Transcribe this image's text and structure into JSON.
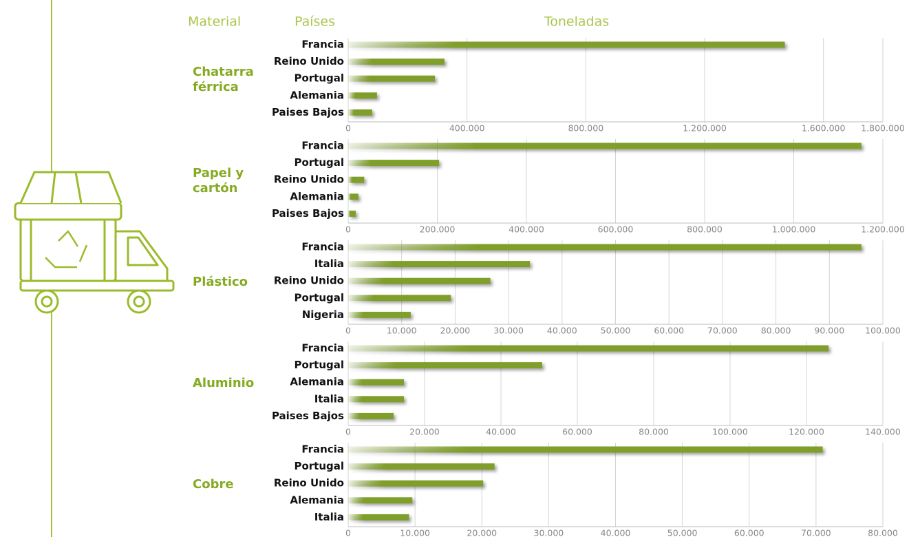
{
  "headers": {
    "material": "Material",
    "countries": "Países",
    "tonnage": "Toneladas"
  },
  "chart_data": [
    {
      "type": "bar",
      "orientation": "horizontal",
      "title": "Chatarra férrica",
      "categories": [
        "Francia",
        "Reino Unido",
        "Portugal",
        "Alemania",
        "Paises Bajos"
      ],
      "values": [
        1470000,
        324000,
        292000,
        97000,
        81000
      ],
      "color": "#7f9f2a",
      "xlim": [
        0,
        1800000
      ],
      "xticks": [
        0,
        {
          "value": 400000,
          "label": "400.000"
        },
        {
          "value": 800000,
          "label": "800.000"
        },
        {
          "value": 1200000,
          "label": "1.200.000"
        },
        {
          "value": 1600000,
          "label": "1.600.000"
        },
        {
          "value": 1800000,
          "label": "1.800.000"
        }
      ],
      "grid": true
    },
    {
      "type": "bar",
      "orientation": "horizontal",
      "title": "Papel y cartón",
      "categories": [
        "Francia",
        "Portugal",
        "Reino Unido",
        "Alemania",
        "Paises Bajos"
      ],
      "values": [
        1152000,
        204000,
        36000,
        23000,
        17000
      ],
      "color": "#7f9f2a",
      "xlim": [
        0,
        1200000
      ],
      "xticks": [
        0,
        {
          "value": 200000,
          "label": "200.000"
        },
        {
          "value": 400000,
          "label": "400.000"
        },
        {
          "value": 600000,
          "label": "600.000"
        },
        {
          "value": 800000,
          "label": "800.000"
        },
        {
          "value": 1000000,
          "label": "1.000.000"
        },
        {
          "value": 1200000,
          "label": "1.200.000"
        }
      ],
      "grid": true
    },
    {
      "type": "bar",
      "orientation": "horizontal",
      "title": "Plástico",
      "categories": [
        "Francia",
        "Italia",
        "Reino Unido",
        "Portugal",
        "Nigeria"
      ],
      "values": [
        96000,
        34000,
        26600,
        19200,
        11700
      ],
      "color": "#7f9f2a",
      "xlim": [
        0,
        100000
      ],
      "xticks": [
        0,
        {
          "value": 10000,
          "label": "10.000"
        },
        {
          "value": 20000,
          "label": "20.000"
        },
        {
          "value": 30000,
          "label": "30.000"
        },
        {
          "value": 40000,
          "label": "40.000"
        },
        {
          "value": 50000,
          "label": "50.000"
        },
        {
          "value": 60000,
          "label": "60.000"
        },
        {
          "value": 70000,
          "label": "70.000"
        },
        {
          "value": 80000,
          "label": "80.000"
        },
        {
          "value": 90000,
          "label": "90.000"
        },
        {
          "value": 100000,
          "label": "100.000"
        }
      ],
      "grid": true
    },
    {
      "type": "bar",
      "orientation": "horizontal",
      "title": "Aluminio",
      "categories": [
        "Francia",
        "Portugal",
        "Alemania",
        "Italia",
        "Paises Bajos"
      ],
      "values": [
        125800,
        50800,
        14600,
        14600,
        11900
      ],
      "color": "#7f9f2a",
      "xlim": [
        0,
        140000
      ],
      "xticks": [
        0,
        {
          "value": 20000,
          "label": "20.000"
        },
        {
          "value": 40000,
          "label": "40.000"
        },
        {
          "value": 60000,
          "label": "60.000"
        },
        {
          "value": 80000,
          "label": "80.000"
        },
        {
          "value": 100000,
          "label": "100.000"
        },
        {
          "value": 120000,
          "label": "120.000"
        },
        {
          "value": 140000,
          "label": "140.000"
        }
      ],
      "grid": true
    },
    {
      "type": "bar",
      "orientation": "horizontal",
      "title": "Cobre",
      "categories": [
        "Francia",
        "Portugal",
        "Reino Unido",
        "Alemania",
        "Italia"
      ],
      "values": [
        71000,
        21900,
        20200,
        9600,
        9100
      ],
      "color": "#7f9f2a",
      "xlim": [
        0,
        80000
      ],
      "xticks": [
        0,
        {
          "value": 10000,
          "label": "10.000"
        },
        {
          "value": 20000,
          "label": "20.000"
        },
        {
          "value": 30000,
          "label": "30.000"
        },
        {
          "value": 40000,
          "label": "40.000"
        },
        {
          "value": 50000,
          "label": "50.000"
        },
        {
          "value": 60000,
          "label": "60.000"
        },
        {
          "value": 70000,
          "label": "70.000"
        },
        {
          "value": 80000,
          "label": "80.000"
        }
      ],
      "grid": true
    }
  ]
}
